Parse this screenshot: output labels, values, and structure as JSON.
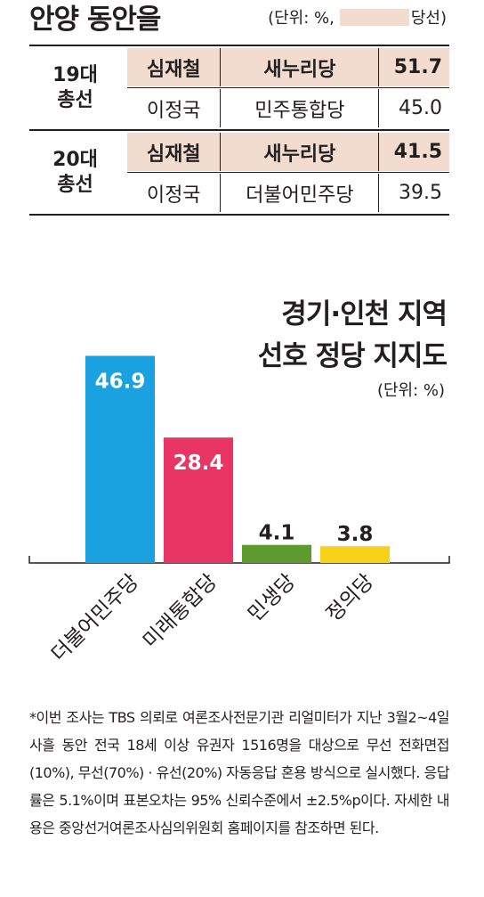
{
  "header": {
    "title": "안양 동안을",
    "unit_prefix": "(단위: %,",
    "unit_suffix": "당선)",
    "winner_color": "#f1dccf"
  },
  "elections": [
    {
      "label_line1": "19대",
      "label_line2": "총선",
      "winner": {
        "name": "심재철",
        "party": "새누리당",
        "share": "51.7"
      },
      "runner_up": {
        "name": "이정국",
        "party": "민주통합당",
        "share": "45.0"
      }
    },
    {
      "label_line1": "20대",
      "label_line2": "총선",
      "winner": {
        "name": "심재철",
        "party": "새누리당",
        "share": "41.5"
      },
      "runner_up": {
        "name": "이정국",
        "party": "더불어민주당",
        "share": "39.5"
      }
    }
  ],
  "chart_data": {
    "type": "bar",
    "title_line1": "경기·인천 지역",
    "title_line2": "선호 정당 지지도",
    "unit": "(단위: %)",
    "categories": [
      "더불어민주당",
      "미래통합당",
      "민생당",
      "정의당"
    ],
    "values": [
      46.9,
      28.4,
      4.1,
      3.8
    ],
    "value_labels": [
      "46.9",
      "28.4",
      "4.1",
      "3.8"
    ],
    "colors": [
      "#1aa1e0",
      "#e83563",
      "#5e9b2e",
      "#f7d118"
    ],
    "ylim": [
      0,
      48
    ],
    "grid": false
  },
  "note": "*이번 조사는 TBS 의뢰로 여론조사전문기관 리얼미터가 지난 3월2~4일 사흘 동안 전국 18세 이상 유권자 1516명을 대상으로 무선 전화면접(10%), 무선(70%) · 유선(20%) 자동응답 혼용 방식으로 실시했다. 응답률은 5.1%이며 표본오차는 95% 신뢰수준에서 ±2.5%p이다. 자세한 내용은 중앙선거여론조사심의위원회 홈페이지를 참조하면 된다."
}
